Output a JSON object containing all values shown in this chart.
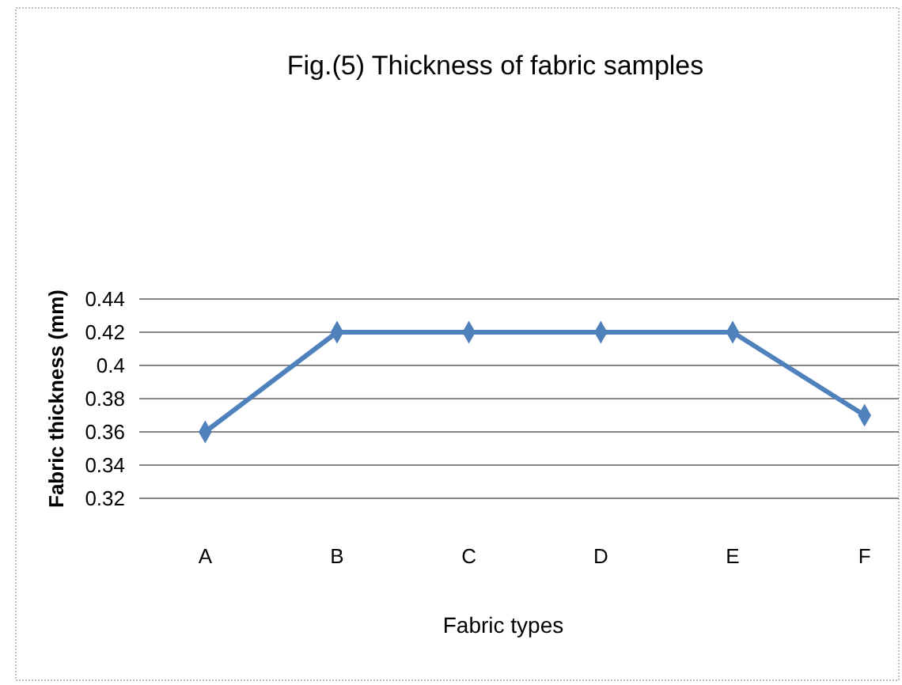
{
  "chart_data": {
    "type": "line",
    "title": "Fig.(5) Thickness of fabric samples",
    "xlabel": "Fabric types",
    "ylabel": "Fabric thickness (mm)",
    "categories": [
      "A",
      "B",
      "C",
      "D",
      "E",
      "F"
    ],
    "series": [
      {
        "color": "#4f81bd",
        "values": [
          0.36,
          0.42,
          0.42,
          0.42,
          0.42,
          0.37
        ]
      }
    ],
    "ylim": [
      0.32,
      0.44
    ],
    "yticks": [
      0.32,
      0.34,
      0.36,
      0.38,
      0.4,
      0.42,
      0.44
    ],
    "grid": "y",
    "marker": "diamond"
  }
}
